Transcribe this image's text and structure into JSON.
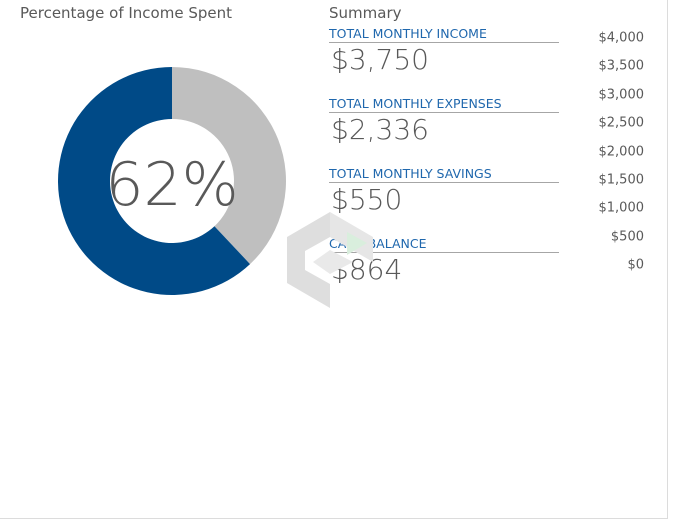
{
  "donut": {
    "title": "Percentage of Income Spent",
    "center_label": "62%"
  },
  "summary": {
    "title": "Summary",
    "items": [
      {
        "label": "TOTAL MONTHLY INCOME",
        "value": "$3,750"
      },
      {
        "label": "TOTAL MONTHLY EXPENSES",
        "value": "$2,336"
      },
      {
        "label": "TOTAL MONTHLY SAVINGS",
        "value": "$550"
      },
      {
        "label": "CASH BALANCE",
        "value": "$864"
      }
    ]
  },
  "chart_data": [
    {
      "type": "pie",
      "title": "Percentage of Income Spent",
      "slices": [
        {
          "label": "",
          "value": 62,
          "color": "#004a87"
        },
        {
          "label": "",
          "value": 38,
          "color": "#bfbfbf"
        }
      ],
      "center_text": "62%"
    },
    {
      "type": "bar",
      "ylim": [
        0,
        4000
      ],
      "ytick_labels": [
        "$4,000",
        "$3,500",
        "$3,000",
        "$2,500",
        "$2,000",
        "$1,500",
        "$1,000",
        "$500",
        "$0"
      ],
      "ytick_values": [
        4000,
        3500,
        3000,
        2500,
        2000,
        1500,
        1000,
        500,
        0
      ]
    }
  ],
  "colors": {
    "spent": "#004a87",
    "remaining": "#bfbfbf",
    "label_blue": "#1f67ad",
    "text_gray": "#595959"
  }
}
